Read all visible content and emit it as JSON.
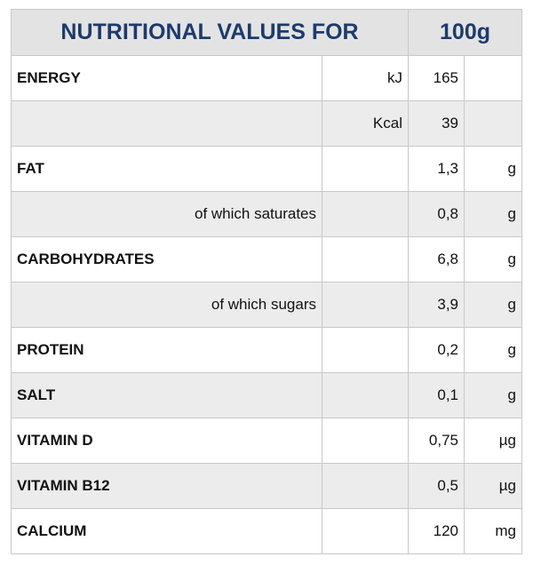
{
  "header": {
    "title": "NUTRITIONAL VALUES FOR",
    "amount": "100g"
  },
  "table": {
    "rows": [
      {
        "label": "ENERGY",
        "unit_a": "kJ",
        "value": "165"
      },
      {
        "unit_a": "Kcal",
        "value": "39"
      },
      {
        "label": "FAT",
        "value": "1,3",
        "unit": "g"
      },
      {
        "sublabel": "of which saturates",
        "value": "0,8",
        "unit": "g"
      },
      {
        "label": "CARBOHYDRATES",
        "value": "6,8",
        "unit": "g"
      },
      {
        "sublabel": "of which sugars",
        "value": "3,9",
        "unit": "g"
      },
      {
        "label": "PROTEIN",
        "value": "0,2",
        "unit": "g"
      },
      {
        "label": "SALT",
        "value": "0,1",
        "unit": "g"
      },
      {
        "label": "VITAMIN D",
        "value": "0,75",
        "unit": "µg"
      },
      {
        "label": "VITAMIN B12",
        "value": "0,5",
        "unit": "µg"
      },
      {
        "label": "CALCIUM",
        "value": "120",
        "unit": "mg"
      }
    ]
  }
}
